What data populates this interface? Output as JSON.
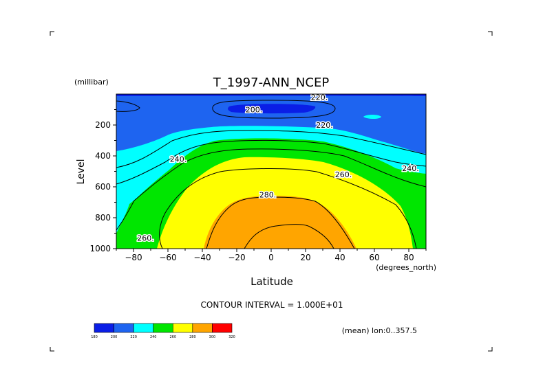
{
  "chart_data": {
    "type": "contour",
    "title": "T_1997-ANN_NCEP",
    "xlabel": "Latitude",
    "ylabel": "Level",
    "x_unit": "(degrees_north)",
    "y_unit": "(millibar)",
    "xlim": [
      -90,
      90
    ],
    "ylim": [
      1000,
      0
    ],
    "x_ticks": [
      -80,
      -60,
      -40,
      -20,
      0,
      20,
      40,
      60,
      80
    ],
    "y_ticks": [
      200,
      400,
      600,
      800,
      1000
    ],
    "contour_interval_text": "CONTOUR INTERVAL = 1.000E+01",
    "mean_note": "(mean) lon:0..357.5",
    "color_levels": [
      180,
      200,
      220,
      240,
      260,
      280,
      300,
      320
    ],
    "colors": [
      "#0a1ee6",
      "#1e64f0",
      "#00ffff",
      "#00e600",
      "#ffff00",
      "#ffa500",
      "#ff0000"
    ],
    "contour_labels": [
      {
        "text": "220.",
        "lat": 28,
        "p": 20
      },
      {
        "text": "200.",
        "lat": -10,
        "p": 100
      },
      {
        "text": "220.",
        "lat": 31,
        "p": 200
      },
      {
        "text": "240.",
        "lat": -54,
        "p": 420
      },
      {
        "text": "240.",
        "lat": 81,
        "p": 480
      },
      {
        "text": "260.",
        "lat": 42,
        "p": 520
      },
      {
        "text": "280.",
        "lat": -2,
        "p": 650
      },
      {
        "text": "260.",
        "lat": -73,
        "p": 930
      }
    ]
  }
}
